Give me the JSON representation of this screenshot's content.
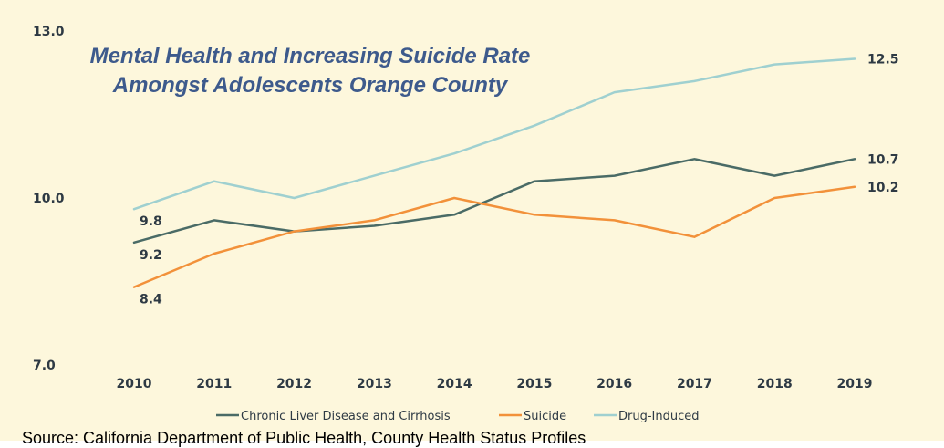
{
  "chart_data": {
    "type": "line",
    "title_lines": [
      "Mental Health and Increasing Suicide Rate",
      "Amongst Adolescents Orange County"
    ],
    "x": [
      "2010",
      "2011",
      "2012",
      "2013",
      "2014",
      "2015",
      "2016",
      "2017",
      "2018",
      "2019"
    ],
    "ylim": [
      7.0,
      13.0
    ],
    "y_ticks": [
      "7.0",
      "10.0",
      "13.0"
    ],
    "grid": false,
    "legend_position": "bottom",
    "series": [
      {
        "name": "Chronic Liver Disease and Cirrhosis",
        "color": "#4a6b66",
        "values": [
          9.2,
          9.6,
          9.4,
          9.5,
          9.7,
          10.3,
          10.4,
          10.7,
          10.4,
          10.7
        ],
        "labels": {
          "0": "9.2",
          "9": "10.7"
        }
      },
      {
        "name": "Suicide",
        "color": "#f2913a",
        "values": [
          8.4,
          9.0,
          9.4,
          9.6,
          10.0,
          9.7,
          9.6,
          9.3,
          10.0,
          10.2
        ],
        "labels": {
          "0": "8.4",
          "9": "10.2"
        }
      },
      {
        "name": "Drug-Induced",
        "color": "#9fd0d0",
        "values": [
          9.8,
          10.3,
          10.0,
          10.4,
          10.8,
          11.3,
          11.9,
          12.1,
          12.4,
          12.5
        ],
        "labels": {
          "0": "9.8",
          "9": "12.5"
        }
      }
    ]
  },
  "source_note": "Source: California Department of Public Health, County Health Status Profiles"
}
